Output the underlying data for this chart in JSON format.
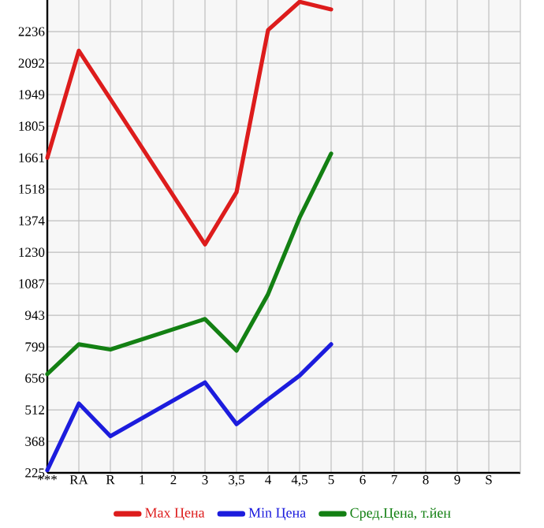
{
  "chart_data": {
    "type": "line",
    "categories": [
      "***",
      "RA",
      "R",
      "1",
      "2",
      "3",
      "3,5",
      "4",
      "4,5",
      "5",
      "6",
      "7",
      "8",
      "9",
      "S"
    ],
    "series": [
      {
        "name": "Max Цена",
        "color": "#dd1c1c",
        "values": [
          1661,
          2149,
          1929,
          null,
          null,
          1266,
          1504,
          2243,
          2372,
          2337,
          null,
          null,
          null,
          null,
          null
        ]
      },
      {
        "name": "Min Цена",
        "color": "#1c1cdd",
        "values": [
          237,
          541,
          392,
          null,
          null,
          637,
          447,
          560,
          668,
          811,
          null,
          null,
          null,
          null,
          null
        ]
      },
      {
        "name": "Сред.Цена, т.йен",
        "color": "#138013",
        "values": [
          675,
          811,
          787,
          null,
          null,
          926,
          782,
          1039,
          1388,
          1680,
          null,
          null,
          null,
          null,
          null
        ]
      }
    ],
    "ylim": [
      225,
      2380
    ],
    "yticks": [
      225,
      368,
      512,
      656,
      799,
      943,
      1087,
      1230,
      1374,
      1518,
      1661,
      1805,
      1949,
      2092,
      2236
    ],
    "grid": true,
    "legend": "bottom",
    "marker": "none",
    "line_style": "solid"
  }
}
